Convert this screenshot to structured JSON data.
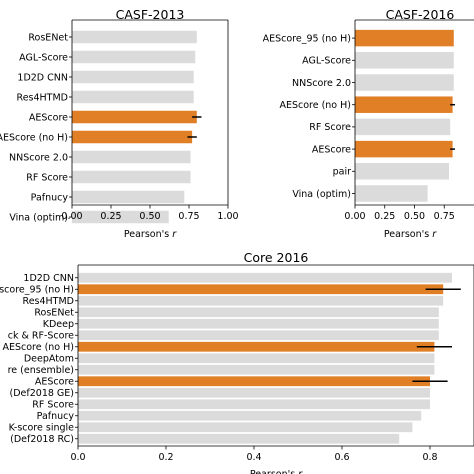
{
  "colors": {
    "highlight": "#E07F26",
    "default": "#DBDBDB",
    "error": "#000000"
  },
  "chart_data": [
    {
      "type": "bar",
      "orientation": "horizontal",
      "title": "CASF-2013",
      "xlabel": "Pearson's r",
      "xlim": [
        0,
        1.0
      ],
      "xticks": [
        0.0,
        0.25,
        0.5,
        0.75,
        1.0
      ],
      "xtick_labels": [
        "0.00",
        "0.25",
        "0.50",
        "0.75",
        "1.00"
      ],
      "grid": false,
      "categories": [
        "RosENet",
        "AGL-Score",
        "1D2D CNN",
        "Res4HTMD",
        "AEScore",
        "AEScore (no H)",
        "NNScore 2.0",
        "RF Score",
        "Pafnucy",
        "Vina (optim)"
      ],
      "values": [
        0.8,
        0.79,
        0.78,
        0.78,
        0.8,
        0.77,
        0.76,
        0.76,
        0.72,
        0.62
      ],
      "errors": [
        0,
        0,
        0,
        0,
        0.03,
        0.03,
        0,
        0,
        0,
        0
      ],
      "highlight": [
        "AEScore",
        "AEScore (no H)"
      ]
    },
    {
      "type": "bar",
      "orientation": "horizontal",
      "title": "CASF-2016",
      "xlabel": "Pearson's r",
      "xlim": [
        0,
        1.0
      ],
      "xticks": [
        0.0,
        0.25,
        0.5,
        0.75
      ],
      "xtick_labels": [
        "0.00",
        "0.25",
        "0.50",
        "0.75"
      ],
      "grid": false,
      "categories": [
        "AEScore_95 (no H)",
        "AGL-Score",
        "NNScore 2.0",
        "AEScore (no H)",
        "RF Score",
        "AEScore",
        "pair",
        "Vina (optim)"
      ],
      "values": [
        0.83,
        0.83,
        0.83,
        0.82,
        0.8,
        0.82,
        0.79,
        0.61
      ],
      "errors": [
        0,
        0,
        0,
        0.02,
        0,
        0.02,
        0,
        0
      ],
      "highlight": [
        "AEScore_95 (no H)",
        "AEScore (no H)",
        "AEScore"
      ]
    },
    {
      "type": "bar",
      "orientation": "horizontal",
      "title": "Core 2016",
      "xlabel": "Pearson's r",
      "xlim": [
        0,
        0.9
      ],
      "xticks": [
        0.0,
        0.2,
        0.4,
        0.6,
        0.8
      ],
      "xtick_labels": [
        "0.0",
        "0.2",
        "0.4",
        "0.6",
        "0.8"
      ],
      "grid": false,
      "categories": [
        "1D2D CNN",
        "score_95 (no H)",
        "Res4HTMD",
        "RosENet",
        "KDeep",
        "ck & RF-Score",
        "AEScore (no H)",
        "DeepAtom",
        "re (ensemble)",
        "AEScore",
        "(Def2018 GE)",
        "RF Score",
        "Pafnucy",
        "K-score single",
        "(Def2018 RC)"
      ],
      "values": [
        0.85,
        0.83,
        0.83,
        0.82,
        0.82,
        0.82,
        0.81,
        0.81,
        0.81,
        0.8,
        0.8,
        0.8,
        0.78,
        0.76,
        0.73
      ],
      "errors": [
        0,
        0.04,
        0,
        0,
        0,
        0,
        0.04,
        0,
        0,
        0.04,
        0,
        0,
        0,
        0,
        0
      ],
      "highlight": [
        "score_95 (no H)",
        "AEScore (no H)",
        "AEScore"
      ]
    }
  ]
}
